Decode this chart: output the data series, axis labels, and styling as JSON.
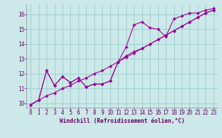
{
  "xlabel": "Windchill (Refroidissement éolien,°C)",
  "background_color": "#cce8e8",
  "line_color": "#990099",
  "grid_color": "#99cccc",
  "x_ticks": [
    0,
    1,
    2,
    3,
    4,
    5,
    6,
    7,
    8,
    9,
    10,
    11,
    12,
    13,
    14,
    15,
    16,
    17,
    18,
    19,
    20,
    21,
    22,
    23
  ],
  "y_ticks": [
    10,
    11,
    12,
    13,
    14,
    15,
    16
  ],
  "xlim": [
    -0.5,
    23.5
  ],
  "ylim": [
    9.7,
    16.7
  ],
  "series1_x": [
    0,
    1,
    2,
    3,
    4,
    5,
    6,
    7,
    8,
    9,
    10,
    11,
    12,
    13,
    14,
    15,
    16,
    17,
    18,
    19,
    20,
    21,
    22,
    23
  ],
  "series1_y": [
    9.9,
    10.2,
    12.2,
    11.2,
    11.8,
    11.4,
    11.7,
    11.1,
    11.3,
    11.3,
    11.5,
    12.8,
    13.8,
    15.3,
    15.5,
    15.1,
    15.0,
    14.5,
    15.7,
    15.9,
    16.1,
    16.1,
    16.3,
    16.4
  ],
  "series2_x": [
    0,
    1,
    2,
    3,
    4,
    5,
    6,
    7,
    8,
    9,
    10,
    11,
    12,
    13,
    14,
    15,
    16,
    17,
    18,
    19,
    20,
    21,
    22,
    23
  ],
  "series2_y": [
    9.9,
    10.2,
    12.2,
    11.2,
    11.8,
    11.4,
    11.7,
    11.1,
    11.3,
    11.3,
    11.5,
    12.8,
    13.2,
    13.5,
    13.7,
    14.0,
    14.3,
    14.6,
    14.9,
    15.2,
    15.5,
    15.8,
    16.1,
    16.3
  ],
  "series3_x": [
    0,
    1,
    2,
    3,
    4,
    5,
    6,
    7,
    8,
    9,
    10,
    11,
    12,
    13,
    14,
    15,
    16,
    17,
    18,
    19,
    20,
    21,
    22,
    23
  ],
  "series3_y": [
    9.9,
    10.2,
    10.5,
    10.7,
    11.0,
    11.2,
    11.5,
    11.7,
    12.0,
    12.2,
    12.5,
    12.8,
    13.1,
    13.4,
    13.7,
    14.0,
    14.3,
    14.6,
    14.9,
    15.2,
    15.5,
    15.8,
    16.1,
    16.3
  ],
  "tick_fontsize": 5.5,
  "xlabel_fontsize": 5.8
}
